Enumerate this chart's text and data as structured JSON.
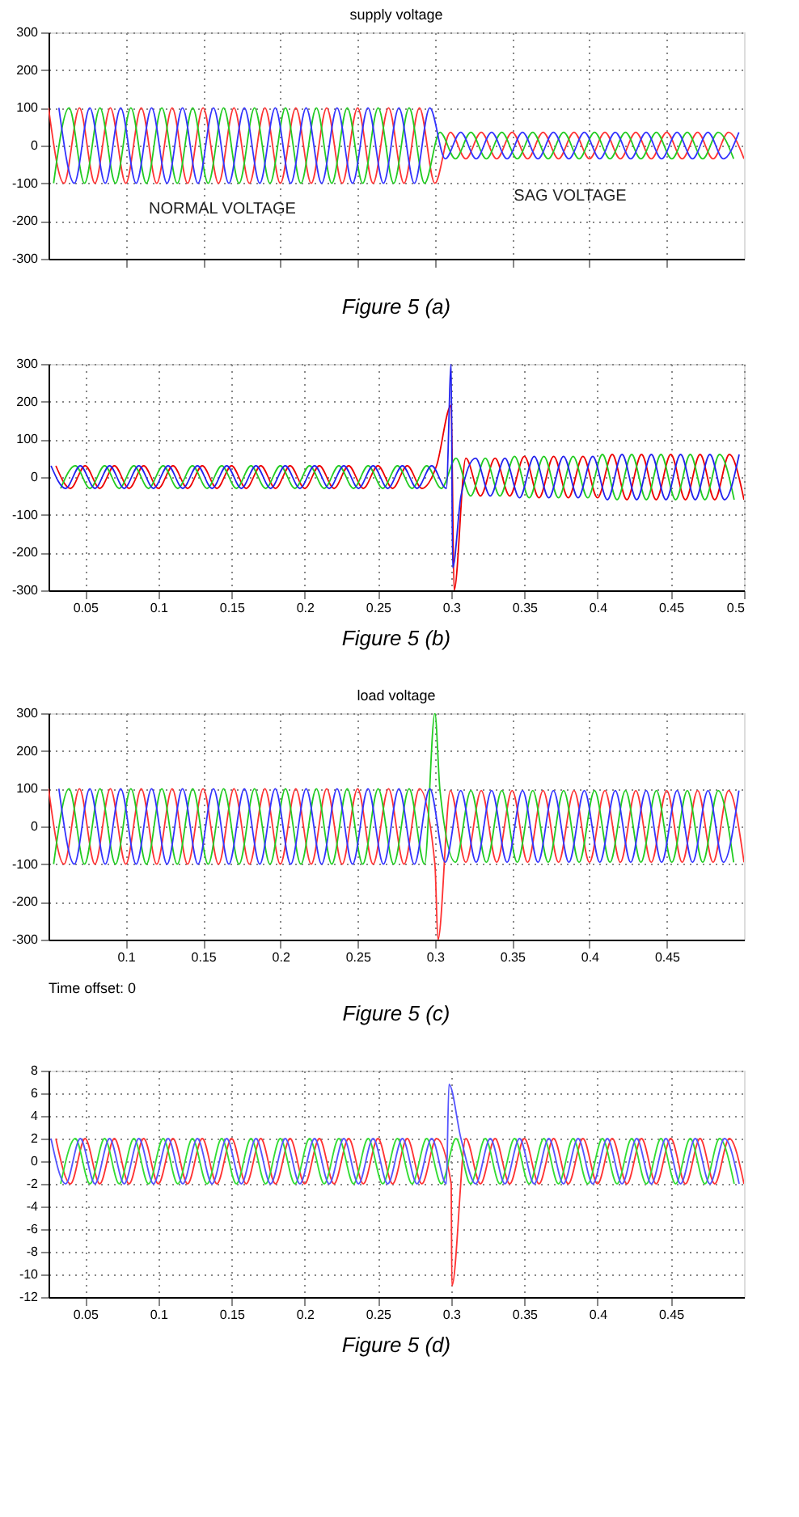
{
  "chart_data": [
    {
      "type": "line",
      "title": "supply voltage",
      "xlim": [
        0.05,
        0.5
      ],
      "ylim": [
        -300,
        300
      ],
      "tick_labels": "y",
      "grid": true,
      "xticks": [
        {
          "value": 0.1,
          "label": null
        },
        {
          "value": 0.15,
          "label": null
        },
        {
          "value": 0.2,
          "label": null
        },
        {
          "value": 0.25,
          "label": null
        },
        {
          "value": 0.3,
          "label": null
        },
        {
          "value": 0.35,
          "label": null
        },
        {
          "value": 0.4,
          "label": null
        },
        {
          "value": 0.45,
          "label": null
        }
      ],
      "yticks": [
        -300,
        -200,
        -100,
        0,
        100,
        200,
        300
      ],
      "annotations": [
        "NORMAL VOLTAGE",
        "SAG VOLTAGE",
        "Figure 5 (a)"
      ],
      "series": [
        {
          "color": "#ff3333",
          "x": [
            0.05,
            0.06,
            0.07,
            0.08,
            0.09,
            0.1,
            0.11,
            0.12,
            0.13,
            0.14,
            0.15,
            0.16,
            0.17,
            0.18,
            0.19,
            0.2,
            0.21,
            0.22,
            0.23,
            0.24,
            0.25,
            0.26,
            0.27,
            0.28,
            0.29,
            0.3,
            0.31,
            0.32,
            0.33,
            0.34,
            0.35,
            0.36,
            0.37,
            0.38,
            0.39,
            0.4,
            0.41,
            0.42,
            0.43,
            0.44,
            0.45,
            0.46,
            0.47,
            0.48,
            0.49,
            0.5
          ],
          "values": [
            100,
            -100,
            100,
            -100,
            100,
            -100,
            100,
            -100,
            100,
            -100,
            100,
            -100,
            100,
            -100,
            100,
            -100,
            100,
            -100,
            100,
            -100,
            100,
            -100,
            100,
            -100,
            100,
            -100,
            35,
            -35,
            35,
            -35,
            35,
            -35,
            35,
            -35,
            35,
            -35,
            35,
            -35,
            35,
            -35,
            35,
            -35,
            35,
            -35,
            35,
            -35
          ]
        },
        {
          "color": "#22cc22",
          "x": [
            0.0533,
            0.0633,
            0.0733,
            0.0833,
            0.0933,
            0.1033,
            0.1133,
            0.1233,
            0.1333,
            0.1433,
            0.1533,
            0.1633,
            0.1733,
            0.1833,
            0.1933,
            0.2033,
            0.2133,
            0.2233,
            0.2333,
            0.2433,
            0.2533,
            0.2633,
            0.2733,
            0.2833,
            0.2933,
            0.3033,
            0.3133,
            0.3233,
            0.3333,
            0.3433,
            0.3533,
            0.3633,
            0.3733,
            0.3833,
            0.3933,
            0.4033,
            0.4133,
            0.4233,
            0.4333,
            0.4433,
            0.4533,
            0.4633,
            0.4733,
            0.4833,
            0.4933
          ],
          "values": [
            -100,
            100,
            -100,
            100,
            -100,
            100,
            -100,
            100,
            -100,
            100,
            -100,
            100,
            -100,
            100,
            -100,
            100,
            -100,
            100,
            -100,
            100,
            -100,
            100,
            -100,
            100,
            -100,
            35,
            -35,
            35,
            -35,
            35,
            -35,
            35,
            -35,
            35,
            -35,
            35,
            -35,
            35,
            -35,
            35,
            -35,
            35,
            -35,
            35,
            -35
          ]
        },
        {
          "color": "#3333ff",
          "x": [
            0.0567,
            0.0667,
            0.0767,
            0.0867,
            0.0967,
            0.1067,
            0.1167,
            0.1267,
            0.1367,
            0.1467,
            0.1567,
            0.1667,
            0.1767,
            0.1867,
            0.1967,
            0.2067,
            0.2167,
            0.2267,
            0.2367,
            0.2467,
            0.2567,
            0.2667,
            0.2767,
            0.2867,
            0.2967,
            0.3067,
            0.3167,
            0.3267,
            0.3367,
            0.3467,
            0.3567,
            0.3667,
            0.3767,
            0.3867,
            0.3967,
            0.4067,
            0.4167,
            0.4267,
            0.4367,
            0.4467,
            0.4567,
            0.4667,
            0.4767,
            0.4867,
            0.4967
          ],
          "values": [
            100,
            -100,
            100,
            -100,
            100,
            -100,
            100,
            -100,
            100,
            -100,
            100,
            -100,
            100,
            -100,
            100,
            -100,
            100,
            -100,
            100,
            -100,
            100,
            -100,
            100,
            -100,
            100,
            -35,
            35,
            -35,
            35,
            -35,
            35,
            -35,
            35,
            -35,
            35,
            -35,
            35,
            -35,
            35,
            -35,
            35,
            -35,
            35,
            -35,
            35
          ]
        }
      ]
    },
    {
      "type": "line",
      "xlim": [
        0.025,
        0.5
      ],
      "ylim": [
        -300,
        300
      ],
      "grid": true,
      "xticks": [
        0.05,
        0.1,
        0.15,
        0.2,
        0.25,
        0.3,
        0.35,
        0.4,
        0.45,
        0.5
      ],
      "yticks": [
        -300,
        -200,
        -100,
        0,
        100,
        200,
        300
      ],
      "annotations": [
        "Figure 5 (b)"
      ],
      "series": [
        {
          "color": "#ee0000",
          "x": [
            0.03,
            0.04,
            0.05,
            0.06,
            0.07,
            0.08,
            0.09,
            0.1,
            0.11,
            0.12,
            0.13,
            0.14,
            0.15,
            0.16,
            0.17,
            0.18,
            0.19,
            0.2,
            0.21,
            0.22,
            0.23,
            0.24,
            0.25,
            0.26,
            0.27,
            0.28,
            0.29,
            0.3,
            0.302,
            0.31,
            0.32,
            0.33,
            0.34,
            0.35,
            0.36,
            0.37,
            0.38,
            0.39,
            0.4,
            0.41,
            0.42,
            0.43,
            0.44,
            0.45,
            0.46,
            0.47,
            0.48,
            0.49,
            0.5
          ],
          "values": [
            30,
            -30,
            30,
            -30,
            30,
            -30,
            30,
            -30,
            30,
            -30,
            30,
            -30,
            30,
            -30,
            30,
            -30,
            30,
            -30,
            30,
            -30,
            30,
            -30,
            30,
            -30,
            30,
            -30,
            30,
            190,
            -300,
            50,
            -50,
            50,
            -50,
            55,
            -55,
            55,
            -55,
            55,
            -55,
            60,
            -60,
            60,
            -60,
            60,
            -60,
            60,
            -60,
            60,
            -60
          ]
        },
        {
          "color": "#22cc22",
          "x": [
            0.0333,
            0.0433,
            0.0533,
            0.0633,
            0.0733,
            0.0833,
            0.0933,
            0.1033,
            0.1133,
            0.1233,
            0.1333,
            0.1433,
            0.1533,
            0.1633,
            0.1733,
            0.1833,
            0.1933,
            0.2033,
            0.2133,
            0.2233,
            0.2333,
            0.2433,
            0.2533,
            0.2633,
            0.2733,
            0.2833,
            0.2933,
            0.3033,
            0.3133,
            0.3233,
            0.3333,
            0.3433,
            0.3533,
            0.3633,
            0.3733,
            0.3833,
            0.3933,
            0.4033,
            0.4133,
            0.4233,
            0.4333,
            0.4433,
            0.4533,
            0.4633,
            0.4733,
            0.4833,
            0.4933
          ],
          "values": [
            -30,
            30,
            -30,
            30,
            -30,
            30,
            -30,
            30,
            -30,
            30,
            -30,
            30,
            -30,
            30,
            -30,
            30,
            -30,
            30,
            -30,
            30,
            -30,
            30,
            -30,
            30,
            -30,
            30,
            -30,
            50,
            -50,
            50,
            -50,
            55,
            -55,
            55,
            -55,
            55,
            -55,
            60,
            -60,
            60,
            -60,
            60,
            -60,
            60,
            -60,
            60,
            -60
          ]
        },
        {
          "color": "#2222ee",
          "x": [
            0.0267,
            0.0367,
            0.0467,
            0.0567,
            0.0667,
            0.0767,
            0.0867,
            0.0967,
            0.1067,
            0.1167,
            0.1267,
            0.1367,
            0.1467,
            0.1567,
            0.1667,
            0.1767,
            0.1867,
            0.1967,
            0.2067,
            0.2167,
            0.2267,
            0.2367,
            0.2467,
            0.2567,
            0.2667,
            0.2767,
            0.2867,
            0.2967,
            0.3,
            0.301,
            0.3067,
            0.3167,
            0.3267,
            0.3367,
            0.3467,
            0.3567,
            0.3667,
            0.3767,
            0.3867,
            0.3967,
            0.4067,
            0.4167,
            0.4267,
            0.4367,
            0.4467,
            0.4567,
            0.4667,
            0.4767,
            0.4867,
            0.4967
          ],
          "values": [
            30,
            -30,
            30,
            -30,
            30,
            -30,
            30,
            -30,
            30,
            -30,
            30,
            -30,
            30,
            -30,
            30,
            -30,
            30,
            -30,
            30,
            -30,
            30,
            -30,
            30,
            -30,
            30,
            -30,
            30,
            -30,
            300,
            -240,
            -50,
            50,
            -50,
            50,
            -55,
            55,
            -55,
            55,
            -55,
            55,
            -60,
            60,
            -60,
            60,
            -60,
            60,
            -60,
            60,
            -60,
            60
          ]
        }
      ]
    },
    {
      "type": "line",
      "title": "load voltage",
      "xlim": [
        0.05,
        0.5
      ],
      "ylim": [
        -300,
        300
      ],
      "grid": true,
      "xticks": [
        0.1,
        0.15,
        0.2,
        0.25,
        0.3,
        0.35,
        0.4,
        0.45
      ],
      "yticks": [
        -300,
        -200,
        -100,
        0,
        100,
        200,
        300
      ],
      "annotations": [
        "Time offset: 0",
        "Figure 5 (c)"
      ],
      "series": [
        {
          "color": "#ff3333",
          "x": [
            0.05,
            0.06,
            0.07,
            0.08,
            0.09,
            0.1,
            0.11,
            0.12,
            0.13,
            0.14,
            0.15,
            0.16,
            0.17,
            0.18,
            0.19,
            0.2,
            0.21,
            0.22,
            0.23,
            0.24,
            0.25,
            0.26,
            0.27,
            0.28,
            0.29,
            0.3,
            0.302,
            0.31,
            0.32,
            0.33,
            0.34,
            0.35,
            0.36,
            0.37,
            0.38,
            0.39,
            0.4,
            0.41,
            0.42,
            0.43,
            0.44,
            0.45,
            0.46,
            0.47,
            0.48,
            0.49,
            0.5
          ],
          "values": [
            100,
            -100,
            100,
            -100,
            100,
            -100,
            100,
            -100,
            100,
            -100,
            100,
            -100,
            100,
            -100,
            100,
            -100,
            100,
            -100,
            100,
            -100,
            100,
            -100,
            100,
            -100,
            100,
            -100,
            -300,
            95,
            -95,
            95,
            -95,
            95,
            -95,
            95,
            -95,
            95,
            -95,
            95,
            -95,
            95,
            -95,
            95,
            -95,
            95,
            -95,
            95,
            -95
          ]
        },
        {
          "color": "#22cc22",
          "x": [
            0.0533,
            0.0633,
            0.0733,
            0.0833,
            0.0933,
            0.1033,
            0.1133,
            0.1233,
            0.1333,
            0.1433,
            0.1533,
            0.1633,
            0.1733,
            0.1833,
            0.1933,
            0.2033,
            0.2133,
            0.2233,
            0.2333,
            0.2433,
            0.2533,
            0.2633,
            0.2733,
            0.2833,
            0.2933,
            0.3,
            0.3033,
            0.3133,
            0.3233,
            0.3333,
            0.3433,
            0.3533,
            0.3633,
            0.3733,
            0.3833,
            0.3933,
            0.4033,
            0.4133,
            0.4233,
            0.4333,
            0.4433,
            0.4533,
            0.4633,
            0.4733,
            0.4833,
            0.4933
          ],
          "values": [
            -100,
            100,
            -100,
            100,
            -100,
            100,
            -100,
            100,
            -100,
            100,
            -100,
            100,
            -100,
            100,
            -100,
            100,
            -100,
            100,
            -100,
            100,
            -100,
            100,
            -100,
            100,
            -100,
            300,
            95,
            -95,
            95,
            -95,
            95,
            -95,
            95,
            -95,
            95,
            -95,
            95,
            -95,
            95,
            -95,
            95,
            -95,
            95,
            -95,
            95,
            -95
          ]
        },
        {
          "color": "#3333ff",
          "x": [
            0.0567,
            0.0667,
            0.0767,
            0.0867,
            0.0967,
            0.1067,
            0.1167,
            0.1267,
            0.1367,
            0.1467,
            0.1567,
            0.1667,
            0.1767,
            0.1867,
            0.1967,
            0.2067,
            0.2167,
            0.2267,
            0.2367,
            0.2467,
            0.2567,
            0.2667,
            0.2767,
            0.2867,
            0.2967,
            0.3067,
            0.3167,
            0.3267,
            0.3367,
            0.3467,
            0.3567,
            0.3667,
            0.3767,
            0.3867,
            0.3967,
            0.4067,
            0.4167,
            0.4267,
            0.4367,
            0.4467,
            0.4567,
            0.4667,
            0.4767,
            0.4867,
            0.4967
          ],
          "values": [
            100,
            -100,
            100,
            -100,
            100,
            -100,
            100,
            -100,
            100,
            -100,
            100,
            -100,
            100,
            -100,
            100,
            -100,
            100,
            -100,
            100,
            -100,
            100,
            -100,
            100,
            -100,
            100,
            -95,
            95,
            -95,
            95,
            -95,
            95,
            -95,
            95,
            -95,
            95,
            -95,
            95,
            -95,
            95,
            -95,
            95,
            -95,
            95,
            -95,
            95
          ]
        }
      ]
    },
    {
      "type": "line",
      "xlim": [
        0.025,
        0.5
      ],
      "ylim": [
        -12,
        8
      ],
      "grid": true,
      "xticks": [
        0.05,
        0.1,
        0.15,
        0.2,
        0.25,
        0.3,
        0.35,
        0.4,
        0.45
      ],
      "yticks": [
        -12,
        -10,
        -8,
        -6,
        -4,
        -2,
        0,
        2,
        4,
        6,
        8
      ],
      "annotations": [
        "Figure 5 (d)"
      ],
      "series": [
        {
          "color": "#ff3333",
          "x": [
            0.03,
            0.04,
            0.05,
            0.06,
            0.07,
            0.08,
            0.09,
            0.1,
            0.11,
            0.12,
            0.13,
            0.14,
            0.15,
            0.16,
            0.17,
            0.18,
            0.19,
            0.2,
            0.21,
            0.22,
            0.23,
            0.24,
            0.25,
            0.26,
            0.27,
            0.28,
            0.29,
            0.3,
            0.3005,
            0.31,
            0.32,
            0.33,
            0.34,
            0.35,
            0.36,
            0.37,
            0.38,
            0.39,
            0.4,
            0.41,
            0.42,
            0.43,
            0.44,
            0.45,
            0.46,
            0.47,
            0.48,
            0.49,
            0.5
          ],
          "values": [
            2,
            -2,
            2,
            -2,
            2,
            -2,
            2,
            -2,
            2,
            -2,
            2,
            -2,
            2,
            -2,
            2,
            -2,
            2,
            -2,
            2,
            -2,
            2,
            -2,
            2,
            -2,
            2,
            -2,
            2,
            -2,
            -11,
            2,
            -2,
            2,
            -2,
            2,
            -2,
            2,
            -2,
            2,
            -2,
            2,
            -2,
            2,
            -2,
            2,
            -2,
            2,
            -2,
            2,
            -2
          ]
        },
        {
          "color": "#33dd33",
          "x": [
            0.0333,
            0.0433,
            0.0533,
            0.0633,
            0.0733,
            0.0833,
            0.0933,
            0.1033,
            0.1133,
            0.1233,
            0.1333,
            0.1433,
            0.1533,
            0.1633,
            0.1733,
            0.1833,
            0.1933,
            0.2033,
            0.2133,
            0.2233,
            0.2333,
            0.2433,
            0.2533,
            0.2633,
            0.2733,
            0.2833,
            0.2933,
            0.3033,
            0.3133,
            0.3233,
            0.3333,
            0.3433,
            0.3533,
            0.3633,
            0.3733,
            0.3833,
            0.3933,
            0.4033,
            0.4133,
            0.4233,
            0.4333,
            0.4433,
            0.4533,
            0.4633,
            0.4733,
            0.4833,
            0.4933
          ],
          "values": [
            -2,
            2,
            -2,
            2,
            -2,
            2,
            -2,
            2,
            -2,
            2,
            -2,
            2,
            -2,
            2,
            -2,
            2,
            -2,
            2,
            -2,
            2,
            -2,
            2,
            -2,
            2,
            -2,
            2,
            -2,
            2,
            -2,
            2,
            -2,
            2,
            -2,
            2,
            -2,
            2,
            -2,
            2,
            -2,
            2,
            -2,
            2,
            -2,
            2,
            -2,
            2,
            -2
          ]
        },
        {
          "color": "#5555ff",
          "x": [
            0.0267,
            0.0367,
            0.0467,
            0.0567,
            0.0667,
            0.0767,
            0.0867,
            0.0967,
            0.1067,
            0.1167,
            0.1267,
            0.1367,
            0.1467,
            0.1567,
            0.1667,
            0.1767,
            0.1867,
            0.1967,
            0.2067,
            0.2167,
            0.2267,
            0.2367,
            0.2467,
            0.2567,
            0.2667,
            0.2767,
            0.2867,
            0.2967,
            0.2985,
            0.3067,
            0.3167,
            0.3267,
            0.3367,
            0.3467,
            0.3567,
            0.3667,
            0.3767,
            0.3867,
            0.3967,
            0.4067,
            0.4167,
            0.4267,
            0.4367,
            0.4467,
            0.4567,
            0.4667,
            0.4767,
            0.4867,
            0.4967
          ],
          "values": [
            2,
            -2,
            2,
            -2,
            2,
            -2,
            2,
            -2,
            2,
            -2,
            2,
            -2,
            2,
            -2,
            2,
            -2,
            2,
            -2,
            2,
            -2,
            2,
            -2,
            2,
            -2,
            2,
            -2,
            2,
            -2,
            6.8,
            2,
            -2,
            2,
            -2,
            2,
            -2,
            2,
            -2,
            2,
            -2,
            2,
            -2,
            2,
            -2,
            2,
            -2,
            2,
            -2,
            2,
            -2
          ]
        }
      ]
    }
  ]
}
